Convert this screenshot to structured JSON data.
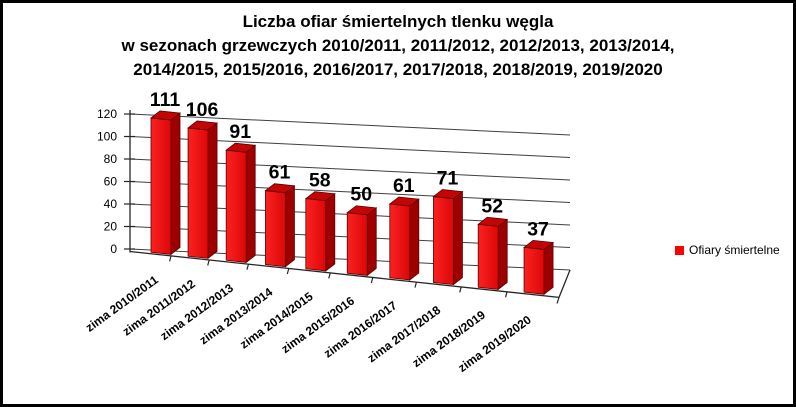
{
  "title": {
    "line1": "Liczba ofiar śmiertelnych tlenku węgla",
    "line2": "w sezonach grzewczych 2010/2011, 2011/2012, 2012/2013, 2013/2014,",
    "line3": "2014/2015, 2015/2016, 2016/2017, 2017/2018, 2018/2019, 2019/2020"
  },
  "legend": {
    "label": "Ofiary śmiertelne",
    "swatch_color": "#FF0000"
  },
  "chart_data": {
    "type": "bar",
    "style": "3d-column",
    "title": "Liczba ofiar śmiertelnych tlenku węgla w sezonach grzewczych 2010/2011, 2011/2012, 2012/2013, 2013/2014, 2014/2015, 2015/2016, 2016/2017, 2017/2018, 2018/2019, 2019/2020",
    "categories": [
      "zima 2010/2011",
      "zima 2011/2012",
      "zima 2012/2013",
      "zima 2013/2014",
      "zima 2014/2015",
      "zima 2015/2016",
      "zima 2016/2017",
      "zima 2017/2018",
      "zima 2018/2019",
      "zima 2019/2020"
    ],
    "series": [
      {
        "name": "Ofiary śmiertelne",
        "values": [
          111,
          106,
          91,
          61,
          58,
          50,
          61,
          71,
          52,
          37
        ]
      }
    ],
    "data_labels": true,
    "xlabel": "",
    "ylabel": "",
    "ylim": [
      0,
      120
    ],
    "yticks": [
      0,
      20,
      40,
      60,
      80,
      100,
      120
    ],
    "grid": true,
    "legend_position": "right",
    "colors": {
      "bar_front_light": "#FB2121",
      "bar_front_dark": "#DC0707",
      "bar_side": "#9E0000",
      "bar_top": "#C30505",
      "gridline": "#3f3f3f",
      "axis": "#262626",
      "text": "#000000"
    }
  }
}
